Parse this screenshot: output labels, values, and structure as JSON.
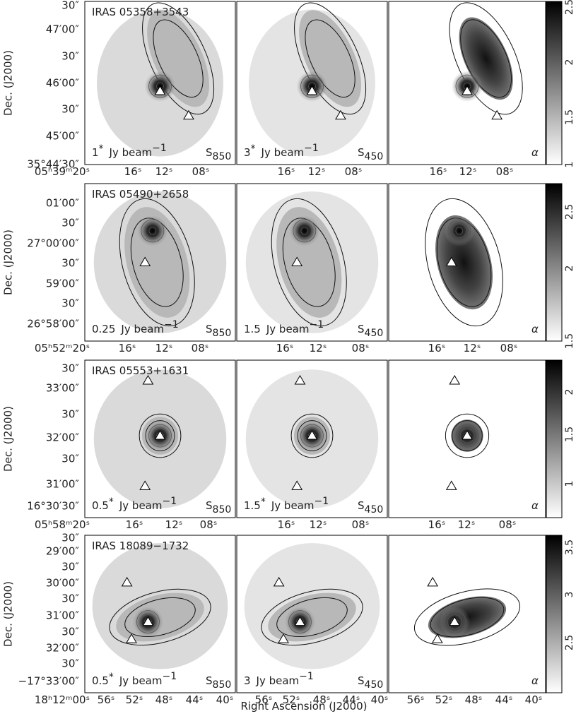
{
  "x_label": "Right Ascension (J2000)",
  "rows": [
    {
      "dec_label": "Dec. (J2000)",
      "dec_ticks": [
        "30″",
        "47′00″",
        "30″",
        "46′00″",
        "30″",
        "45′00″",
        "35°44′30″"
      ],
      "ra_ticks": [
        [
          "05ʰ39ᵐ20ˢ",
          "16ˢ",
          "12ˢ",
          "08ˢ"
        ],
        [
          "16ˢ",
          "12ˢ",
          "08ˢ"
        ],
        [
          "16ˢ",
          "12ˢ",
          "08ˢ"
        ]
      ],
      "colorbar_ticks": [
        "2.5",
        "2",
        "1.5",
        "1"
      ],
      "panels": [
        {
          "source": "IRAS 05358+3543",
          "scale": "1",
          "scale_mark": "*",
          "unit": "Jy beam",
          "unit_exp": "−1",
          "map": "S",
          "map_sub": "850"
        },
        {
          "scale": "3",
          "scale_mark": "*",
          "unit": "Jy beam",
          "unit_exp": "−1",
          "map": "S",
          "map_sub": "450"
        },
        {
          "map": "α"
        }
      ]
    },
    {
      "dec_label": "Dec. (J2000)",
      "dec_ticks": [
        "01′00″",
        "30″",
        "27°00′00″",
        "30″",
        "59′00″",
        "30″",
        "26°58′00″"
      ],
      "ra_ticks": [
        [
          "05ʰ52ᵐ20ˢ",
          "16ˢ",
          "12ˢ",
          "08ˢ"
        ],
        [
          "16ˢ",
          "12ˢ",
          "08ˢ"
        ],
        [
          "16ˢ",
          "12ˢ",
          "08ˢ"
        ]
      ],
      "colorbar_ticks": [
        "2.5",
        "2",
        "1.5"
      ],
      "panels": [
        {
          "source": "IRAS 05490+2658",
          "scale": "0.25",
          "unit": "Jy beam",
          "unit_exp": "−1",
          "map": "S",
          "map_sub": "850"
        },
        {
          "scale": "1.5",
          "unit": "Jy beam",
          "unit_exp": "−1",
          "map": "S",
          "map_sub": "450"
        },
        {
          "map": "α"
        }
      ]
    },
    {
      "dec_label": "Dec. (J2000)",
      "dec_ticks": [
        "30″",
        "33′00″",
        "30″",
        "32′00″",
        "30″",
        "31′00″",
        "16°30′30″"
      ],
      "ra_ticks": [
        [
          "05ʰ58ᵐ20ˢ",
          "16ˢ",
          "12ˢ",
          "08ˢ"
        ],
        [
          "16ˢ",
          "12ˢ",
          "08ˢ"
        ],
        [
          "16ˢ",
          "12ˢ",
          "08ˢ"
        ]
      ],
      "colorbar_ticks": [
        "2",
        "1.5",
        "1"
      ],
      "panels": [
        {
          "source": "IRAS 05553+1631",
          "scale": "0.5",
          "scale_mark": "*",
          "unit": "Jy beam",
          "unit_exp": "−1",
          "map": "S",
          "map_sub": "850"
        },
        {
          "scale": "1.5",
          "scale_mark": "*",
          "unit": "Jy beam",
          "unit_exp": "−1",
          "map": "S",
          "map_sub": "450"
        },
        {
          "map": "α"
        }
      ]
    },
    {
      "dec_label": "Dec. (J2000)",
      "dec_ticks": [
        "30″",
        "29′00″",
        "30″",
        "30′00″",
        "30″",
        "31′00″",
        "30″",
        "32′00″",
        "30″",
        "−17°33′00″"
      ],
      "ra_ticks": [
        [
          "18ʰ12ᵐ00ˢ",
          "56ˢ",
          "52ˢ",
          "48ˢ",
          "44ˢ",
          "40ˢ"
        ],
        [
          "56ˢ",
          "52ˢ",
          "48ˢ",
          "44ˢ",
          "40ˢ"
        ],
        [
          "56ˢ",
          "52ˢ",
          "48ˢ",
          "44ˢ",
          "40ˢ"
        ]
      ],
      "colorbar_ticks": [
        "3.5",
        "3",
        "2.5"
      ],
      "panels": [
        {
          "source": "IRAS 18089−1732",
          "scale": "0.5",
          "scale_mark": "*",
          "unit": "Jy beam",
          "unit_exp": "−1",
          "map": "S",
          "map_sub": "850"
        },
        {
          "scale": "3",
          "unit": "Jy beam",
          "unit_exp": "−1",
          "map": "S",
          "map_sub": "450"
        },
        {
          "map": "α"
        }
      ]
    }
  ]
}
